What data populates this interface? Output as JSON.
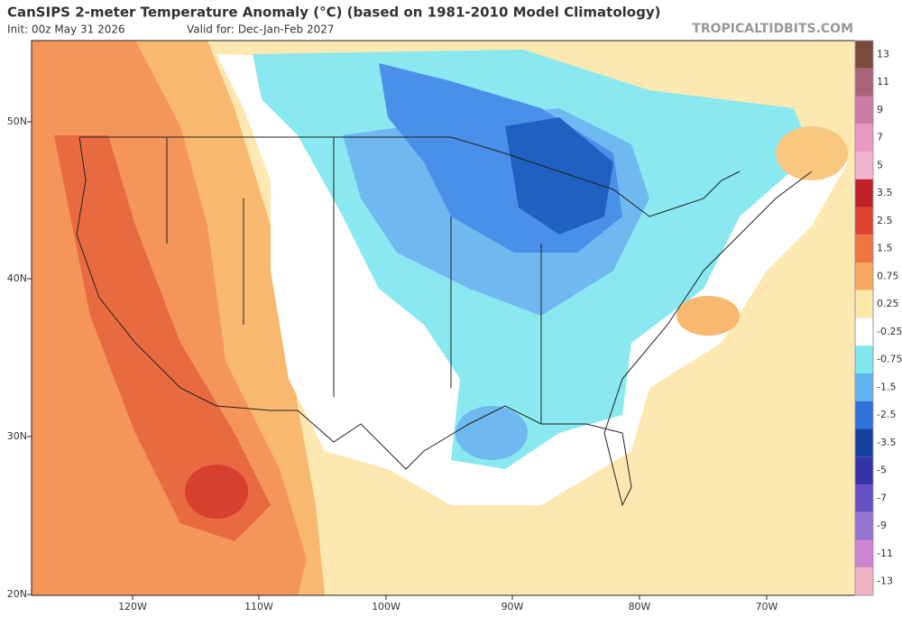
{
  "header": {
    "title": "CanSIPS 2-meter Temperature Anomaly (°C) (based on 1981-2010 Model Climatology)",
    "init": "Init: 00z May 31 2026",
    "valid": "Valid for: Dec-Jan-Feb 2027",
    "site": "TROPICALTIDBITS.COM"
  },
  "latitudes": [
    "50N",
    "40N",
    "30N",
    "20N"
  ],
  "longitudes": [
    "120W",
    "110W",
    "100W",
    "90W",
    "80W",
    "70W"
  ],
  "colorbar": [
    {
      "label": "13",
      "color": "#7a4a3a"
    },
    {
      "label": "11",
      "color": "#a86478"
    },
    {
      "label": "9",
      "color": "#cc7ca6"
    },
    {
      "label": "7",
      "color": "#ea98c4"
    },
    {
      "label": "5",
      "color": "#f2b4d2"
    },
    {
      "label": "3.5",
      "color": "#c0202a"
    },
    {
      "label": "2.5",
      "color": "#e04432"
    },
    {
      "label": "1.5",
      "color": "#f07442"
    },
    {
      "label": "0.75",
      "color": "#f8aa62"
    },
    {
      "label": "0.25",
      "color": "#fce8a8"
    },
    {
      "label": "-0.25",
      "color": "#ffffff"
    },
    {
      "label": "-0.75",
      "color": "#80e8f0"
    },
    {
      "label": "-1.5",
      "color": "#62b2f0"
    },
    {
      "label": "-2.5",
      "color": "#3070d8"
    },
    {
      "label": "-3.5",
      "color": "#1840a0"
    },
    {
      "label": "-5",
      "color": "#3434a8"
    },
    {
      "label": "-7",
      "color": "#6450c4"
    },
    {
      "label": "-9",
      "color": "#9474d4"
    },
    {
      "label": "-11",
      "color": "#d084d4"
    },
    {
      "label": "-13",
      "color": "#f2b4c4"
    }
  ]
}
